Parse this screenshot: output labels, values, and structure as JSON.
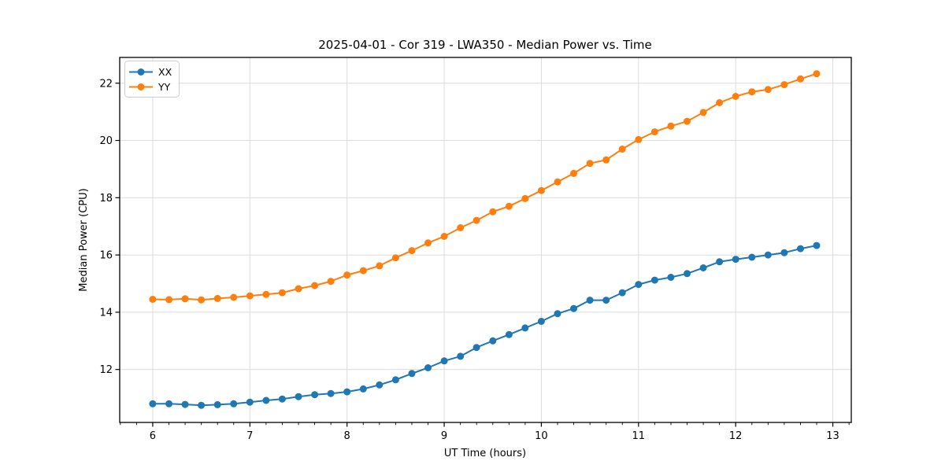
{
  "chart_data": {
    "type": "line",
    "title": "2025-04-01 - Cor 319 - LWA350 - Median Power vs. Time",
    "xlabel": "UT Time (hours)",
    "ylabel": "Median Power (CPU)",
    "xlim": [
      5.66,
      13.19
    ],
    "ylim": [
      10.15,
      22.9
    ],
    "xticks": [
      6,
      7,
      8,
      9,
      10,
      11,
      12,
      13
    ],
    "yticks": [
      12,
      14,
      16,
      18,
      20,
      22
    ],
    "x_minor_tick_step": 0.16667,
    "grid": true,
    "legend_position": "upper-left",
    "x": [
      6.0,
      6.167,
      6.333,
      6.5,
      6.667,
      6.833,
      7.0,
      7.167,
      7.333,
      7.5,
      7.667,
      7.833,
      8.0,
      8.167,
      8.333,
      8.5,
      8.667,
      8.833,
      9.0,
      9.167,
      9.333,
      9.5,
      9.667,
      9.833,
      10.0,
      10.167,
      10.333,
      10.5,
      10.667,
      10.833,
      11.0,
      11.167,
      11.333,
      11.5,
      11.667,
      11.833,
      12.0,
      12.167,
      12.333,
      12.5,
      12.667,
      12.833
    ],
    "series": [
      {
        "name": "XX",
        "color": "#1f77b4",
        "values": [
          10.8,
          10.8,
          10.78,
          10.75,
          10.77,
          10.8,
          10.86,
          10.92,
          10.97,
          11.05,
          11.12,
          11.16,
          11.22,
          11.32,
          11.46,
          11.64,
          11.86,
          12.06,
          12.3,
          12.46,
          12.77,
          13.0,
          13.22,
          13.45,
          13.68,
          13.95,
          14.13,
          14.42,
          14.42,
          14.68,
          14.97,
          15.12,
          15.22,
          15.35,
          15.55,
          15.76,
          15.85,
          15.92,
          16.0,
          16.08,
          16.22,
          16.33
        ]
      },
      {
        "name": "YY",
        "color": "#ff7f0e",
        "values": [
          14.45,
          14.44,
          14.47,
          14.43,
          14.48,
          14.52,
          14.57,
          14.62,
          14.68,
          14.82,
          14.93,
          15.08,
          15.3,
          15.45,
          15.62,
          15.9,
          16.15,
          16.42,
          16.65,
          16.95,
          17.21,
          17.51,
          17.7,
          17.97,
          18.25,
          18.55,
          18.85,
          19.2,
          19.32,
          19.7,
          20.03,
          20.3,
          20.5,
          20.67,
          20.98,
          21.32,
          21.54,
          21.7,
          21.78,
          21.95,
          22.15,
          22.33
        ]
      }
    ],
    "colors": {
      "grid": "#dcdcdc",
      "spine": "#000000",
      "legend_border": "#cccccc",
      "legend_fill": "#ffffff"
    }
  }
}
